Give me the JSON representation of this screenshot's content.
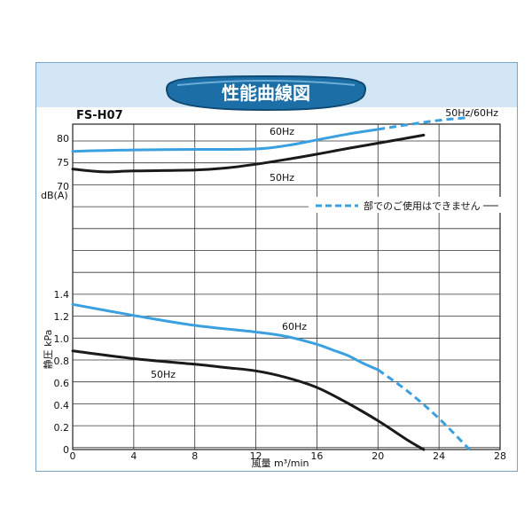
{
  "chart_data": {
    "type": "line",
    "title": "性能曲線図",
    "model": "FS-H07",
    "xlabel": "風量 m³/min",
    "xlim": [
      0,
      28
    ],
    "x_ticks": [
      "0",
      "4",
      "8",
      "12",
      "16",
      "20",
      "24",
      "28"
    ],
    "noise_panel": {
      "ylabel": "dB(A)",
      "ylim": [
        70,
        83
      ],
      "y_ticks": [
        "70",
        "75",
        "80"
      ],
      "series": [
        {
          "name": "60Hz",
          "color": "#3aa0e0",
          "x": [
            0,
            4,
            8,
            12,
            14,
            16,
            18,
            20
          ],
          "y": [
            77.3,
            77.6,
            77.7,
            77.8,
            78.5,
            79.7,
            80.9,
            81.9
          ]
        },
        {
          "name": "50Hz",
          "color": "#1a1a1a",
          "x": [
            0,
            2,
            4,
            8,
            10,
            12,
            14,
            16,
            18,
            20,
            23
          ],
          "y": [
            73.6,
            73.0,
            73.2,
            73.4,
            73.8,
            74.6,
            75.6,
            76.7,
            77.9,
            79.0,
            80.7
          ]
        },
        {
          "name": "50Hz/60Hz",
          "color": "#3aa0e0",
          "dashed": true,
          "x": [
            20,
            22,
            24,
            26
          ],
          "y": [
            81.9,
            82.9,
            83.8,
            84.4
          ]
        }
      ]
    },
    "pressure_panel": {
      "ylabel": "静圧 kPa",
      "ylim": [
        0,
        1.4
      ],
      "y_ticks": [
        "0",
        "0.2",
        "0.4",
        "0.6",
        "0.8",
        "1.0",
        "1.2",
        "1.4"
      ],
      "series": [
        {
          "name": "60Hz",
          "color": "#3aa0e0",
          "x": [
            0,
            4,
            8,
            12,
            14,
            16,
            17,
            18,
            19,
            20
          ],
          "y": [
            1.31,
            1.21,
            1.12,
            1.06,
            1.02,
            0.95,
            0.9,
            0.85,
            0.78,
            0.72
          ]
        },
        {
          "name": "60Hz",
          "color": "#3aa0e0",
          "dashed": true,
          "x": [
            20,
            22,
            24,
            26
          ],
          "y": [
            0.72,
            0.52,
            0.28,
            0.0
          ]
        },
        {
          "name": "50Hz",
          "color": "#1a1a1a",
          "x": [
            0,
            4,
            8,
            10,
            12,
            14,
            16,
            18,
            20,
            22,
            23
          ],
          "y": [
            0.89,
            0.82,
            0.77,
            0.74,
            0.71,
            0.65,
            0.56,
            0.42,
            0.26,
            0.08,
            0.0
          ]
        }
      ]
    },
    "annotations": {
      "noise_60hz": "60Hz",
      "noise_50hz": "50Hz",
      "dual": "50Hz/60Hz",
      "pressure_60hz": "60Hz",
      "pressure_50hz": "50Hz",
      "legend_dashed": "部でのご使用はできません"
    }
  }
}
